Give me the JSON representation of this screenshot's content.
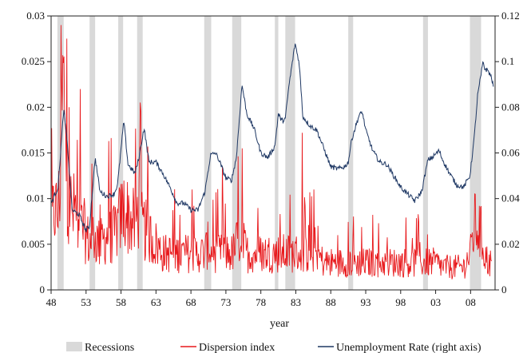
{
  "chart_data": {
    "type": "line",
    "xlabel": "year",
    "x_tick_labels": [
      "48",
      "53",
      "58",
      "63",
      "68",
      "73",
      "78",
      "83",
      "88",
      "93",
      "98",
      "03",
      "08"
    ],
    "x_ticks": [
      1948,
      1953,
      1958,
      1963,
      1968,
      1973,
      1978,
      1983,
      1988,
      1993,
      1998,
      2003,
      2008
    ],
    "xlim": [
      1948,
      2011.5
    ],
    "ylim_left": [
      0,
      0.03
    ],
    "ylim_right": [
      0,
      0.12
    ],
    "y_left_ticks": [
      0,
      0.005,
      0.01,
      0.015,
      0.02,
      0.025,
      0.03
    ],
    "y_left_tick_labels": [
      "0",
      "0.005",
      "0.01",
      "0.015",
      "0.02",
      "0.025",
      "0.03"
    ],
    "y_right_ticks": [
      0,
      0.02,
      0.04,
      0.06,
      0.08,
      0.1,
      0.12
    ],
    "y_right_tick_labels": [
      "0",
      "0.02",
      "0.04",
      "0.06",
      "0.08",
      "0.1",
      "0.12"
    ],
    "legend_position": "bottom",
    "recessions": [
      [
        1948.9,
        1949.8
      ],
      [
        1953.5,
        1954.3
      ],
      [
        1957.6,
        1958.3
      ],
      [
        1960.3,
        1961.1
      ],
      [
        1969.9,
        1970.9
      ],
      [
        1973.9,
        1975.2
      ],
      [
        1980.0,
        1980.5
      ],
      [
        1981.5,
        1982.9
      ],
      [
        1990.5,
        1991.2
      ],
      [
        2001.2,
        2001.9
      ],
      [
        2007.9,
        2009.5
      ]
    ],
    "series": [
      {
        "name": "Recessions",
        "kind": "shading",
        "color": "#d9d9d9"
      },
      {
        "name": "Dispersion index",
        "axis": "left",
        "color": "#e8191c",
        "points": [
          [
            1948.0,
            0.007
          ],
          [
            1948.5,
            0.009
          ],
          [
            1949.0,
            0.008
          ],
          [
            1949.4,
            0.014
          ],
          [
            1949.7,
            0.0257
          ],
          [
            1950.0,
            0.015
          ],
          [
            1950.5,
            0.011
          ],
          [
            1951.0,
            0.008
          ],
          [
            1951.5,
            0.009
          ],
          [
            1952.0,
            0.006
          ],
          [
            1952.5,
            0.007
          ],
          [
            1953.0,
            0.006
          ],
          [
            1953.5,
            0.005
          ],
          [
            1954.0,
            0.006
          ],
          [
            1955.0,
            0.005
          ],
          [
            1956.0,
            0.006
          ],
          [
            1957.0,
            0.006
          ],
          [
            1958.0,
            0.008
          ],
          [
            1958.5,
            0.009
          ],
          [
            1959.0,
            0.008
          ],
          [
            1960.0,
            0.007
          ],
          [
            1960.5,
            0.009
          ],
          [
            1961.0,
            0.007
          ],
          [
            1962.0,
            0.006
          ],
          [
            1963.0,
            0.005
          ],
          [
            1964.0,
            0.004
          ],
          [
            1965.0,
            0.004
          ],
          [
            1966.0,
            0.004
          ],
          [
            1967.0,
            0.004
          ],
          [
            1968.0,
            0.004
          ],
          [
            1969.0,
            0.004
          ],
          [
            1970.0,
            0.004
          ],
          [
            1970.5,
            0.005
          ],
          [
            1971.0,
            0.004
          ],
          [
            1972.0,
            0.004
          ],
          [
            1973.0,
            0.004
          ],
          [
            1974.0,
            0.004
          ],
          [
            1975.0,
            0.006
          ],
          [
            1975.5,
            0.005
          ],
          [
            1976.0,
            0.004
          ],
          [
            1977.0,
            0.004
          ],
          [
            1978.0,
            0.004
          ],
          [
            1979.0,
            0.004
          ],
          [
            1980.0,
            0.004
          ],
          [
            1981.0,
            0.004
          ],
          [
            1982.0,
            0.004
          ],
          [
            1983.0,
            0.004
          ],
          [
            1984.0,
            0.004
          ],
          [
            1985.0,
            0.004
          ],
          [
            1986.0,
            0.004
          ],
          [
            1987.0,
            0.003
          ],
          [
            1988.0,
            0.003
          ],
          [
            1989.0,
            0.003
          ],
          [
            1990.0,
            0.003
          ],
          [
            1991.0,
            0.003
          ],
          [
            1992.0,
            0.003
          ],
          [
            1993.0,
            0.003
          ],
          [
            1994.0,
            0.003
          ],
          [
            1995.0,
            0.003
          ],
          [
            1996.0,
            0.003
          ],
          [
            1997.0,
            0.003
          ],
          [
            1998.0,
            0.003
          ],
          [
            1999.0,
            0.003
          ],
          [
            2000.0,
            0.003
          ],
          [
            2001.0,
            0.003
          ],
          [
            2002.0,
            0.003
          ],
          [
            2003.0,
            0.003
          ],
          [
            2004.0,
            0.0025
          ],
          [
            2005.0,
            0.0025
          ],
          [
            2006.0,
            0.0025
          ],
          [
            2007.0,
            0.0025
          ],
          [
            2008.0,
            0.004
          ],
          [
            2008.5,
            0.007
          ],
          [
            2009.0,
            0.007
          ],
          [
            2009.5,
            0.006
          ],
          [
            2010.0,
            0.004
          ],
          [
            2010.5,
            0.003
          ],
          [
            2011.0,
            0.003
          ]
        ]
      },
      {
        "name": "Unemployment Rate  (right axis)",
        "axis": "right",
        "color": "#1f3864",
        "points": [
          [
            1948.0,
            0.038
          ],
          [
            1949.0,
            0.045
          ],
          [
            1949.8,
            0.079
          ],
          [
            1950.3,
            0.065
          ],
          [
            1951.0,
            0.035
          ],
          [
            1952.0,
            0.033
          ],
          [
            1953.0,
            0.026
          ],
          [
            1953.5,
            0.028
          ],
          [
            1954.3,
            0.058
          ],
          [
            1955.0,
            0.043
          ],
          [
            1956.0,
            0.041
          ],
          [
            1957.0,
            0.042
          ],
          [
            1957.5,
            0.046
          ],
          [
            1958.4,
            0.074
          ],
          [
            1959.0,
            0.055
          ],
          [
            1960.0,
            0.051
          ],
          [
            1960.5,
            0.057
          ],
          [
            1961.3,
            0.071
          ],
          [
            1962.0,
            0.056
          ],
          [
            1963.0,
            0.056
          ],
          [
            1964.0,
            0.051
          ],
          [
            1965.0,
            0.045
          ],
          [
            1966.0,
            0.038
          ],
          [
            1967.0,
            0.038
          ],
          [
            1968.0,
            0.035
          ],
          [
            1969.0,
            0.035
          ],
          [
            1970.0,
            0.043
          ],
          [
            1970.8,
            0.059
          ],
          [
            1971.5,
            0.06
          ],
          [
            1972.0,
            0.057
          ],
          [
            1973.0,
            0.049
          ],
          [
            1973.8,
            0.048
          ],
          [
            1974.5,
            0.058
          ],
          [
            1975.3,
            0.09
          ],
          [
            1976.0,
            0.077
          ],
          [
            1977.0,
            0.071
          ],
          [
            1978.0,
            0.06
          ],
          [
            1979.0,
            0.058
          ],
          [
            1980.0,
            0.063
          ],
          [
            1980.5,
            0.077
          ],
          [
            1981.0,
            0.074
          ],
          [
            1981.5,
            0.075
          ],
          [
            1982.0,
            0.089
          ],
          [
            1982.9,
            0.108
          ],
          [
            1983.5,
            0.099
          ],
          [
            1984.0,
            0.076
          ],
          [
            1985.0,
            0.072
          ],
          [
            1986.0,
            0.07
          ],
          [
            1987.0,
            0.062
          ],
          [
            1988.0,
            0.054
          ],
          [
            1989.0,
            0.053
          ],
          [
            1990.0,
            0.054
          ],
          [
            1990.5,
            0.056
          ],
          [
            1991.0,
            0.066
          ],
          [
            1992.0,
            0.076
          ],
          [
            1992.5,
            0.078
          ],
          [
            1993.0,
            0.07
          ],
          [
            1994.0,
            0.061
          ],
          [
            1995.0,
            0.056
          ],
          [
            1996.0,
            0.055
          ],
          [
            1997.0,
            0.05
          ],
          [
            1998.0,
            0.045
          ],
          [
            1999.0,
            0.042
          ],
          [
            2000.0,
            0.039
          ],
          [
            2001.0,
            0.043
          ],
          [
            2001.9,
            0.057
          ],
          [
            2002.5,
            0.058
          ],
          [
            2003.5,
            0.061
          ],
          [
            2004.0,
            0.057
          ],
          [
            2005.0,
            0.051
          ],
          [
            2006.0,
            0.046
          ],
          [
            2007.0,
            0.045
          ],
          [
            2007.9,
            0.05
          ],
          [
            2008.5,
            0.066
          ],
          [
            2009.0,
            0.085
          ],
          [
            2009.8,
            0.1
          ],
          [
            2010.0,
            0.097
          ],
          [
            2010.5,
            0.096
          ],
          [
            2011.0,
            0.093
          ],
          [
            2011.3,
            0.088
          ]
        ]
      }
    ]
  }
}
